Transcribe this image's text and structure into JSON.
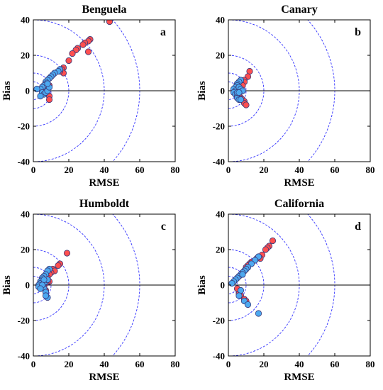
{
  "colors": {
    "circle_stroke": "#3333ff",
    "zero_line": "#000000",
    "axis": "#000000",
    "red_point": "#ff4f4f",
    "blue_point": "#4da9f0",
    "point_stroke": "#3a3a7a"
  },
  "chart_data": [
    {
      "type": "scatter",
      "title": "Benguela",
      "panel_label": "a",
      "xlabel": "RMSE",
      "ylabel": "Bias",
      "xlim": [
        0,
        80
      ],
      "ylim": [
        -40,
        40
      ],
      "xticks": [
        "0",
        "20",
        "40",
        "60",
        "80"
      ],
      "yticks": [
        "40",
        "20",
        "0",
        "-20",
        "-40"
      ],
      "reference_circles": [
        5,
        10,
        20,
        40,
        60
      ],
      "series": [
        {
          "color": "#ff4f4f",
          "points": [
            [
              43,
              39
            ],
            [
              32,
              29
            ],
            [
              31,
              28
            ],
            [
              29,
              27
            ],
            [
              28,
              26
            ],
            [
              31,
              22
            ],
            [
              25,
              24
            ],
            [
              24,
              23
            ],
            [
              22,
              21
            ],
            [
              20,
              17
            ],
            [
              17,
              13
            ],
            [
              16,
              12
            ],
            [
              17,
              10
            ],
            [
              15,
              11
            ],
            [
              9,
              3
            ],
            [
              8,
              1
            ],
            [
              9,
              -3
            ],
            [
              9,
              -5
            ]
          ]
        },
        {
          "color": "#4da9f0",
          "points": [
            [
              15,
              12
            ],
            [
              14,
              11
            ],
            [
              12,
              10
            ],
            [
              11,
              9
            ],
            [
              10,
              8
            ],
            [
              9,
              7
            ],
            [
              8,
              6
            ],
            [
              7,
              5
            ],
            [
              7,
              4
            ],
            [
              6,
              3
            ],
            [
              5,
              2
            ],
            [
              4,
              1
            ],
            [
              2,
              1
            ],
            [
              5,
              -1
            ],
            [
              6,
              -2
            ],
            [
              4,
              -3
            ],
            [
              7,
              -1
            ],
            [
              8,
              0
            ],
            [
              9,
              2
            ],
            [
              8,
              4
            ]
          ]
        }
      ]
    },
    {
      "type": "scatter",
      "title": "Canary",
      "panel_label": "b",
      "xlabel": "RMSE",
      "ylabel": "Bias",
      "xlim": [
        0,
        80
      ],
      "ylim": [
        -40,
        40
      ],
      "xticks": [
        "0",
        "20",
        "40",
        "60",
        "80"
      ],
      "yticks": [
        "40",
        "20",
        "0",
        "-20",
        "-40"
      ],
      "reference_circles": [
        5,
        10,
        20,
        40,
        60
      ],
      "series": [
        {
          "color": "#ff4f4f",
          "points": [
            [
              12,
              11
            ],
            [
              11,
              8
            ],
            [
              9,
              6
            ],
            [
              8,
              4
            ],
            [
              9,
              5
            ],
            [
              7,
              -4
            ],
            [
              8,
              -5
            ],
            [
              9,
              -6
            ],
            [
              9,
              -7
            ],
            [
              10,
              -8
            ],
            [
              6,
              -2
            ],
            [
              8,
              3
            ]
          ]
        },
        {
          "color": "#4da9f0",
          "points": [
            [
              7,
              6
            ],
            [
              6,
              5
            ],
            [
              5,
              4
            ],
            [
              5,
              3
            ],
            [
              4,
              2
            ],
            [
              3,
              1
            ],
            [
              4,
              0
            ],
            [
              3,
              -1
            ],
            [
              4,
              -2
            ],
            [
              5,
              -3
            ],
            [
              5,
              -4
            ],
            [
              6,
              -5
            ],
            [
              7,
              -5
            ],
            [
              6,
              2
            ],
            [
              7,
              1
            ],
            [
              8,
              0
            ],
            [
              5,
              -1
            ],
            [
              6,
              -1
            ]
          ]
        }
      ]
    },
    {
      "type": "scatter",
      "title": "Humboldt",
      "panel_label": "c",
      "xlabel": "RMSE",
      "ylabel": "Bias",
      "xlim": [
        0,
        80
      ],
      "ylim": [
        -40,
        40
      ],
      "xticks": [
        "0",
        "20",
        "40",
        "60",
        "80"
      ],
      "yticks": [
        "40",
        "20",
        "0",
        "-20",
        "-40"
      ],
      "reference_circles": [
        5,
        10,
        20,
        40,
        60
      ],
      "series": [
        {
          "color": "#ff4f4f",
          "points": [
            [
              19,
              18
            ],
            [
              15,
              12
            ],
            [
              14,
              11
            ],
            [
              11,
              9
            ],
            [
              12,
              8
            ],
            [
              10,
              7
            ],
            [
              9,
              6
            ],
            [
              8,
              4
            ],
            [
              9,
              2
            ],
            [
              7,
              1
            ],
            [
              6,
              -1
            ],
            [
              5,
              -1
            ],
            [
              7,
              -3
            ],
            [
              8,
              2
            ]
          ]
        },
        {
          "color": "#4da9f0",
          "points": [
            [
              9,
              9
            ],
            [
              8,
              8
            ],
            [
              7,
              6
            ],
            [
              6,
              5
            ],
            [
              5,
              4
            ],
            [
              5,
              3
            ],
            [
              4,
              2
            ],
            [
              4,
              1
            ],
            [
              3,
              0
            ],
            [
              3,
              -1
            ],
            [
              5,
              -1
            ],
            [
              6,
              -2
            ],
            [
              7,
              -4
            ],
            [
              8,
              -7
            ],
            [
              7,
              -6
            ],
            [
              6,
              1
            ],
            [
              7,
              2
            ],
            [
              8,
              3
            ],
            [
              6,
              3
            ],
            [
              5,
              0
            ],
            [
              4,
              -2
            ]
          ]
        }
      ]
    },
    {
      "type": "scatter",
      "title": "California",
      "panel_label": "d",
      "xlabel": "RMSE",
      "ylabel": "Bias",
      "xlim": [
        0,
        80
      ],
      "ylim": [
        -40,
        40
      ],
      "xticks": [
        "0",
        "20",
        "40",
        "60",
        "80"
      ],
      "yticks": [
        "40",
        "20",
        "0",
        "-20",
        "-40"
      ],
      "reference_circles": [
        5,
        10,
        20,
        40,
        60
      ],
      "series": [
        {
          "color": "#ff4f4f",
          "points": [
            [
              25,
              25
            ],
            [
              23,
              22
            ],
            [
              22,
              21
            ],
            [
              21,
              20
            ],
            [
              19,
              17
            ],
            [
              18,
              15
            ],
            [
              17,
              16
            ],
            [
              16,
              15
            ],
            [
              13,
              13
            ],
            [
              12,
              12
            ],
            [
              11,
              11
            ],
            [
              10,
              10
            ],
            [
              9,
              8
            ],
            [
              8,
              7
            ],
            [
              6,
              -4
            ],
            [
              5,
              -2
            ],
            [
              6,
              -5
            ],
            [
              7,
              -6
            ],
            [
              9,
              -8
            ],
            [
              10,
              -9
            ],
            [
              4,
              3
            ]
          ]
        },
        {
          "color": "#4da9f0",
          "points": [
            [
              17,
              16
            ],
            [
              15,
              14
            ],
            [
              13,
              12
            ],
            [
              11,
              10
            ],
            [
              10,
              9
            ],
            [
              9,
              8
            ],
            [
              8,
              7
            ],
            [
              7,
              6
            ],
            [
              6,
              5
            ],
            [
              5,
              4
            ],
            [
              4,
              3
            ],
            [
              3,
              2
            ],
            [
              2,
              1
            ],
            [
              7,
              -3
            ],
            [
              6,
              -6
            ],
            [
              9,
              -9
            ],
            [
              11,
              -11
            ],
            [
              17,
              -16
            ],
            [
              8,
              6
            ]
          ]
        }
      ]
    }
  ]
}
